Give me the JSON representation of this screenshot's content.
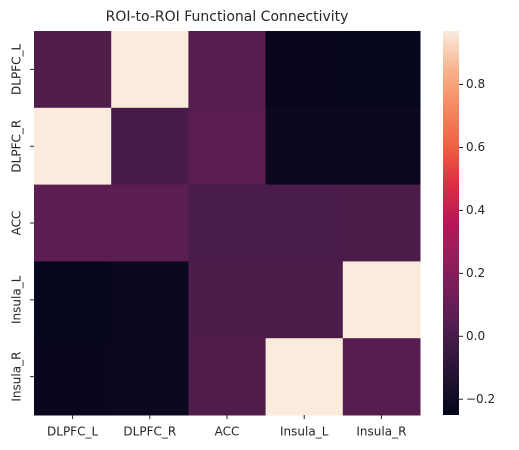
{
  "chart_data": {
    "type": "heatmap",
    "title": "ROI-to-ROI Functional Connectivity",
    "x_categories": [
      "DLPFC_L",
      "DLPFC_R",
      "ACC",
      "Insula_L",
      "Insula_R"
    ],
    "y_categories": [
      "DLPFC_L",
      "DLPFC_R",
      "ACC",
      "Insula_L",
      "Insula_R"
    ],
    "values": [
      [
        0.03,
        0.97,
        0.05,
        -0.23,
        -0.24
      ],
      [
        0.97,
        0.0,
        0.06,
        -0.22,
        -0.22
      ],
      [
        0.07,
        0.07,
        0.01,
        0.01,
        0.02
      ],
      [
        -0.24,
        -0.22,
        0.02,
        0.02,
        0.97
      ],
      [
        -0.23,
        -0.22,
        0.03,
        0.97,
        0.05
      ]
    ],
    "colormap": "rocket",
    "clim": [
      -0.25,
      0.97
    ],
    "colorbar_ticks": [
      {
        "value": -0.2,
        "label": "−0.2"
      },
      {
        "value": 0.0,
        "label": "0.0"
      },
      {
        "value": 0.2,
        "label": "0.2"
      },
      {
        "value": 0.4,
        "label": "0.4"
      },
      {
        "value": 0.6,
        "label": "0.6"
      },
      {
        "value": 0.8,
        "label": "0.8"
      }
    ]
  }
}
